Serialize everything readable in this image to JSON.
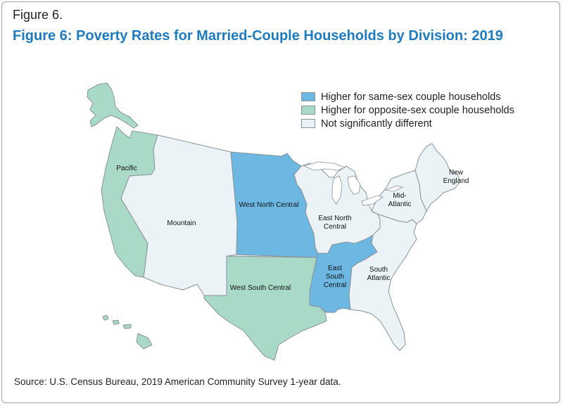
{
  "figure_label": "Figure 6.",
  "title": "Figure 6: Poverty Rates for Married-Couple Households by Division: 2019",
  "source": "Source: U.S. Census Bureau, 2019 American Community Survey 1-year data.",
  "legend": {
    "items": [
      {
        "label": "Higher for same-sex couple households",
        "color": "#6cb8e3"
      },
      {
        "label": "Higher for opposite-sex couple households",
        "color": "#a9dac8"
      },
      {
        "label": "Not significantly different",
        "color": "#ebf3f7"
      }
    ]
  },
  "colors": {
    "same_sex_higher": "#6cb8e3",
    "opposite_sex_higher": "#a9dac8",
    "not_different": "#ebf3f7",
    "border": "#8a9298",
    "title": "#1f7bbf"
  },
  "divisions": [
    {
      "name": "Pacific",
      "label_lines": [
        "Pacific"
      ],
      "category": "opposite_sex_higher"
    },
    {
      "name": "Mountain",
      "label_lines": [
        "Mountain"
      ],
      "category": "not_different"
    },
    {
      "name": "West North Central",
      "label_lines": [
        "West North Central"
      ],
      "category": "same_sex_higher"
    },
    {
      "name": "West South Central",
      "label_lines": [
        "West South Central"
      ],
      "category": "opposite_sex_higher"
    },
    {
      "name": "East North Central",
      "label_lines": [
        "East North",
        "Central"
      ],
      "category": "not_different"
    },
    {
      "name": "East South Central",
      "label_lines": [
        "East",
        "South",
        "Central"
      ],
      "category": "same_sex_higher"
    },
    {
      "name": "South Atlantic",
      "label_lines": [
        "South",
        "Atlantic"
      ],
      "category": "not_different"
    },
    {
      "name": "Mid-Atlantic",
      "label_lines": [
        "Mid-",
        "Atlantic"
      ],
      "category": "not_different"
    },
    {
      "name": "New England",
      "label_lines": [
        "New",
        "England"
      ],
      "category": "not_different"
    }
  ]
}
